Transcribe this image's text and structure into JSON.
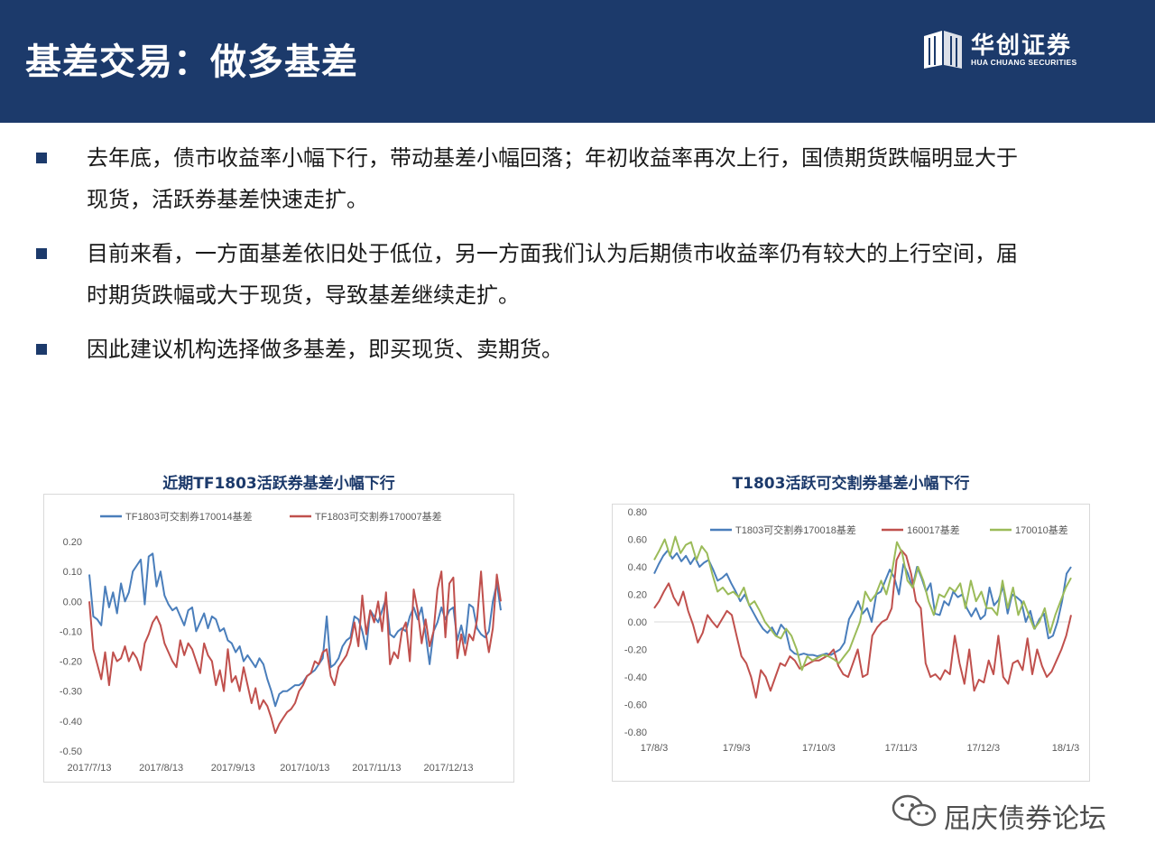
{
  "header": {
    "title": "基差交易：做多基差",
    "logo_cn": "华创证券",
    "logo_en": "HUA CHUANG SECURITIES"
  },
  "bullets": [
    {
      "text": "去年底，债市收益率小幅下行，带动基差小幅回落；年初收益率再次上行，国债期货跌幅明显大于现货，活跃券基差快速走扩。"
    },
    {
      "text": "目前来看，一方面基差依旧处于低位，另一方面我们认为后期债市收益率仍有较大的上行空间，届时期货跌幅或大于现货，导致基差继续走扩。"
    },
    {
      "text": "因此建议机构选择做多基差，即买现货、卖期货。"
    }
  ],
  "colors": {
    "header_bg": "#1c3a6b",
    "blue_series": "#4a7ebb",
    "red_series": "#c0504d",
    "green_series": "#9bbb59",
    "title_blue": "#1c3a6b"
  },
  "watermark": {
    "text": "屈庆债券论坛",
    "icon": "wechat-icon"
  },
  "chart_data": [
    {
      "type": "line",
      "title": "近期TF1803活跃券基差小幅下行",
      "ylim": [
        -0.5,
        0.2
      ],
      "yticks": [
        "0.20",
        "0.10",
        "0.00",
        "-0.10",
        "-0.20",
        "-0.30",
        "-0.40",
        "-0.50"
      ],
      "ytick_values": [
        0.2,
        0.1,
        0.0,
        -0.1,
        -0.2,
        -0.3,
        -0.4,
        -0.5
      ],
      "xticks": [
        "2017/7/13",
        "2017/8/13",
        "2017/9/13",
        "2017/10/13",
        "2017/11/13",
        "2017/12/13"
      ],
      "legend_position": "top",
      "series": [
        {
          "name": "TF1803可交割券170014基差",
          "color": "#4a7ebb",
          "values": [
            0.09,
            -0.05,
            -0.06,
            -0.08,
            0.05,
            -0.02,
            0.03,
            -0.04,
            0.06,
            0.0,
            0.03,
            0.1,
            0.12,
            0.14,
            -0.01,
            0.15,
            0.16,
            0.05,
            0.1,
            0.02,
            -0.01,
            -0.03,
            -0.02,
            -0.05,
            -0.08,
            -0.03,
            -0.02,
            -0.1,
            -0.07,
            -0.04,
            -0.09,
            -0.05,
            -0.06,
            -0.1,
            -0.09,
            -0.13,
            -0.14,
            -0.17,
            -0.15,
            -0.2,
            -0.18,
            -0.2,
            -0.22,
            -0.19,
            -0.21,
            -0.26,
            -0.3,
            -0.35,
            -0.31,
            -0.3,
            -0.3,
            -0.29,
            -0.28,
            -0.28,
            -0.27,
            -0.25,
            -0.24,
            -0.23,
            -0.21,
            -0.19,
            -0.05,
            -0.22,
            -0.21,
            -0.19,
            -0.15,
            -0.13,
            -0.12,
            -0.05,
            -0.06,
            -0.1,
            -0.16,
            -0.03,
            -0.05,
            -0.07,
            -0.03,
            0.01,
            -0.11,
            -0.12,
            -0.1,
            -0.09,
            -0.1,
            -0.05,
            -0.02,
            -0.06,
            -0.02,
            -0.11,
            -0.21,
            -0.1,
            -0.07,
            -0.02,
            -0.06,
            -0.03,
            -0.02,
            -0.13,
            -0.08,
            -0.14,
            -0.01,
            -0.02,
            -0.09,
            -0.11,
            -0.12,
            -0.1,
            0.0,
            0.06,
            -0.03
          ]
        },
        {
          "name": "TF1803可交割券170007基差",
          "color": "#c0504d",
          "values": [
            0.0,
            -0.16,
            -0.21,
            -0.26,
            -0.17,
            -0.28,
            -0.17,
            -0.2,
            -0.19,
            -0.15,
            -0.2,
            -0.17,
            -0.19,
            -0.23,
            -0.14,
            -0.11,
            -0.07,
            -0.05,
            -0.08,
            -0.14,
            -0.17,
            -0.2,
            -0.22,
            -0.13,
            -0.18,
            -0.14,
            -0.16,
            -0.2,
            -0.24,
            -0.14,
            -0.18,
            -0.2,
            -0.28,
            -0.23,
            -0.3,
            -0.16,
            -0.27,
            -0.25,
            -0.3,
            -0.22,
            -0.28,
            -0.34,
            -0.29,
            -0.36,
            -0.33,
            -0.35,
            -0.39,
            -0.44,
            -0.41,
            -0.39,
            -0.37,
            -0.36,
            -0.34,
            -0.3,
            -0.28,
            -0.25,
            -0.24,
            -0.2,
            -0.21,
            -0.17,
            -0.16,
            -0.25,
            -0.28,
            -0.22,
            -0.2,
            -0.18,
            -0.14,
            -0.07,
            -0.15,
            0.02,
            -0.11,
            -0.03,
            -0.07,
            0.0,
            -0.1,
            0.03,
            -0.21,
            -0.17,
            -0.19,
            -0.1,
            -0.07,
            -0.2,
            0.04,
            -0.03,
            -0.14,
            -0.06,
            -0.15,
            -0.1,
            0.04,
            0.1,
            -0.12,
            0.06,
            0.08,
            -0.19,
            -0.11,
            -0.18,
            -0.11,
            -0.13,
            -0.06,
            0.1,
            -0.09,
            -0.17,
            -0.09,
            0.09,
            0.0
          ]
        }
      ]
    },
    {
      "type": "line",
      "title": "T1803活跃可交割券基差小幅下行",
      "ylim": [
        -0.8,
        0.8
      ],
      "yticks": [
        "0.80",
        "0.60",
        "0.40",
        "0.20",
        "0.00",
        "-0.20",
        "-0.40",
        "-0.60",
        "-0.80"
      ],
      "ytick_values": [
        0.8,
        0.6,
        0.4,
        0.2,
        0.0,
        -0.2,
        -0.4,
        -0.6,
        -0.8
      ],
      "xticks": [
        "17/8/3",
        "17/9/3",
        "17/10/3",
        "17/11/3",
        "17/12/3",
        "18/1/3"
      ],
      "legend_position": "top",
      "series": [
        {
          "name": "T1803可交割券170018基差",
          "color": "#4a7ebb",
          "values": [
            0.35,
            0.42,
            0.48,
            0.52,
            0.46,
            0.5,
            0.44,
            0.48,
            0.42,
            0.47,
            0.4,
            0.43,
            0.45,
            0.38,
            0.3,
            0.32,
            0.35,
            0.28,
            0.22,
            0.15,
            0.2,
            0.12,
            0.06,
            0.0,
            -0.05,
            -0.08,
            -0.04,
            -0.1,
            -0.02,
            -0.06,
            -0.2,
            -0.23,
            -0.24,
            -0.23,
            -0.24,
            -0.24,
            -0.25,
            -0.24,
            -0.23,
            -0.24,
            -0.22,
            -0.2,
            -0.15,
            0.02,
            0.08,
            0.15,
            0.06,
            0.1,
            0.0,
            0.2,
            0.22,
            0.3,
            0.38,
            0.32,
            0.2,
            0.42,
            0.35,
            0.25,
            0.4,
            0.32,
            0.22,
            0.28,
            0.06,
            0.05,
            0.15,
            0.12,
            0.22,
            0.18,
            0.2,
            0.1,
            0.04,
            0.1,
            0.02,
            0.05,
            0.25,
            0.12,
            0.16,
            0.26,
            0.06,
            0.2,
            0.18,
            0.15,
            0.0,
            0.08,
            -0.05,
            0.02,
            0.06,
            -0.12,
            -0.1,
            0.0,
            0.15,
            0.35,
            0.4
          ]
        },
        {
          "name": "160017基差",
          "color": "#c0504d",
          "values": [
            0.1,
            0.15,
            0.22,
            0.28,
            0.18,
            0.12,
            0.22,
            0.08,
            -0.02,
            -0.15,
            -0.08,
            0.05,
            0.0,
            -0.04,
            0.02,
            0.08,
            0.05,
            -0.1,
            -0.25,
            -0.3,
            -0.4,
            -0.55,
            -0.35,
            -0.4,
            -0.5,
            -0.4,
            -0.3,
            -0.32,
            -0.25,
            -0.28,
            -0.34,
            -0.32,
            -0.3,
            -0.28,
            -0.28,
            -0.26,
            -0.24,
            -0.2,
            -0.32,
            -0.38,
            -0.4,
            -0.3,
            -0.2,
            -0.4,
            -0.38,
            -0.1,
            -0.04,
            0.0,
            0.02,
            0.1,
            0.45,
            0.52,
            0.48,
            0.35,
            0.15,
            0.1,
            -0.3,
            -0.4,
            -0.38,
            -0.42,
            -0.35,
            -0.38,
            -0.1,
            -0.3,
            -0.45,
            -0.2,
            -0.5,
            -0.42,
            -0.44,
            -0.28,
            -0.38,
            -0.1,
            -0.4,
            -0.45,
            -0.3,
            -0.28,
            -0.35,
            -0.12,
            -0.38,
            -0.2,
            -0.32,
            -0.4,
            -0.36,
            -0.28,
            -0.2,
            -0.1,
            0.05
          ]
        },
        {
          "name": "170010基差",
          "color": "#9bbb59",
          "values": [
            0.45,
            0.52,
            0.6,
            0.48,
            0.62,
            0.5,
            0.56,
            0.58,
            0.45,
            0.55,
            0.5,
            0.35,
            0.22,
            0.25,
            0.2,
            0.22,
            0.18,
            0.25,
            0.12,
            0.15,
            0.08,
            0.0,
            -0.05,
            -0.1,
            -0.12,
            -0.05,
            -0.1,
            -0.2,
            -0.35,
            -0.25,
            -0.28,
            -0.26,
            -0.24,
            -0.25,
            -0.27,
            -0.3,
            -0.25,
            -0.2,
            -0.1,
            0.0,
            0.22,
            0.15,
            0.2,
            0.3,
            0.2,
            0.35,
            0.58,
            0.5,
            0.3,
            0.25,
            0.4,
            0.3,
            0.15,
            0.05,
            0.2,
            0.18,
            0.25,
            0.22,
            0.28,
            0.1,
            0.3,
            0.15,
            0.22,
            0.1,
            0.1,
            0.05,
            0.3,
            0.1,
            0.25,
            0.05,
            0.15,
            0.05,
            -0.05,
            0.0,
            0.1,
            -0.08,
            0.05,
            0.15,
            0.25,
            0.32
          ]
        }
      ]
    }
  ]
}
